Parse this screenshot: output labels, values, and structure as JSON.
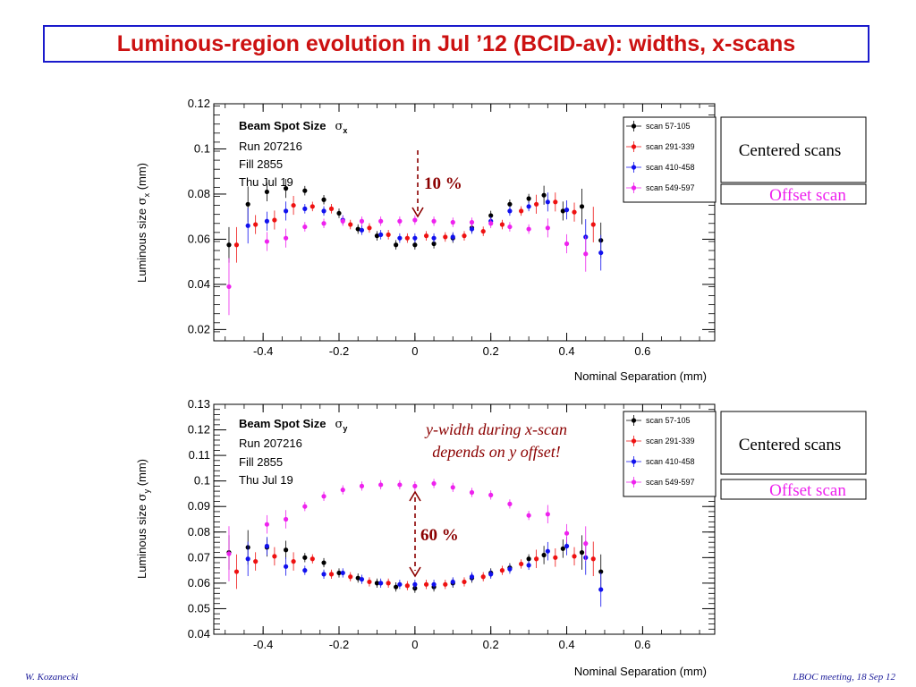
{
  "slide_title": "Luminous-region evolution in Jul ’12 (BCID-av): widths, x-scans",
  "footer_left": "W. Kozanecki",
  "footer_right": "LBOC meeting, 18 Sep 12",
  "colors": {
    "title": "#cc1111",
    "border": "#1a1acc",
    "scan_57_105": "#000000",
    "scan_291_339": "#ee1111",
    "scan_410_458": "#1111ee",
    "scan_549_597": "#ee22ee",
    "annotation": "#8b0000"
  },
  "chart_data": [
    {
      "type": "scatter",
      "info_title": "Beam Spot Size",
      "info_symbol": "σ",
      "info_subscript": "x",
      "info_lines": [
        "Run 207216",
        "Fill 2855",
        "Thu Jul 19"
      ],
      "xlabel": "Nominal Separation (mm)",
      "ylabel_pre": "Luminous size  ",
      "ylabel_symbol": "σ",
      "ylabel_subscript": "x",
      "ylabel_post": " (mm)",
      "xlim": [
        -0.53,
        0.79
      ],
      "ylim": [
        0.015,
        0.12
      ],
      "xticks": [
        "-0.4",
        "-0.2",
        "0",
        "0.2",
        "0.4",
        "0.6"
      ],
      "yticks": [
        "0.02",
        "0.04",
        "0.06",
        "0.08",
        "0.1",
        "0.12"
      ],
      "grid": false,
      "legend_position": "right",
      "side_labels": {
        "centered": "Centered scans",
        "offset": "Offset scan"
      },
      "annotation": "10 %",
      "series": [
        {
          "name": "scan 57-105",
          "x": [
            -0.49,
            -0.44,
            -0.39,
            -0.34,
            -0.29,
            -0.24,
            -0.2,
            -0.15,
            -0.1,
            -0.05,
            0.0,
            0.05,
            0.1,
            0.15,
            0.2,
            0.25,
            0.3,
            0.34,
            0.39,
            0.44,
            0.49
          ],
          "y": [
            0.0575,
            0.0755,
            0.081,
            0.0825,
            0.0815,
            0.0775,
            0.0715,
            0.0645,
            0.0615,
            0.0575,
            0.0575,
            0.058,
            0.0605,
            0.065,
            0.0705,
            0.0755,
            0.078,
            0.0795,
            0.0725,
            0.0745,
            0.0595
          ]
        },
        {
          "name": "scan 291-339",
          "x": [
            -0.47,
            -0.42,
            -0.37,
            -0.32,
            -0.27,
            -0.22,
            -0.17,
            -0.12,
            -0.07,
            -0.02,
            0.03,
            0.08,
            0.13,
            0.18,
            0.23,
            0.28,
            0.32,
            0.37,
            0.42,
            0.47
          ],
          "y": [
            0.0575,
            0.0665,
            0.0685,
            0.075,
            0.0745,
            0.0735,
            0.0665,
            0.065,
            0.062,
            0.0605,
            0.0615,
            0.061,
            0.0615,
            0.0635,
            0.0665,
            0.0725,
            0.0755,
            0.0765,
            0.072,
            0.0665
          ]
        },
        {
          "name": "scan 410-458",
          "x": [
            -0.44,
            -0.39,
            -0.34,
            -0.29,
            -0.24,
            -0.19,
            -0.14,
            -0.09,
            -0.04,
            0.0,
            0.05,
            0.1,
            0.15,
            0.2,
            0.25,
            0.3,
            0.35,
            0.4,
            0.45,
            0.49
          ],
          "y": [
            0.066,
            0.068,
            0.0725,
            0.0735,
            0.0725,
            0.0685,
            0.064,
            0.062,
            0.0605,
            0.0605,
            0.0605,
            0.061,
            0.0645,
            0.068,
            0.0725,
            0.0745,
            0.0765,
            0.073,
            0.061,
            0.054
          ]
        },
        {
          "name": "scan 549-597",
          "x": [
            -0.49,
            -0.39,
            -0.34,
            -0.29,
            -0.24,
            -0.19,
            -0.14,
            -0.09,
            -0.04,
            0.0,
            0.05,
            0.1,
            0.15,
            0.2,
            0.25,
            0.3,
            0.35,
            0.4,
            0.45
          ],
          "y": [
            0.039,
            0.059,
            0.0605,
            0.0655,
            0.067,
            0.068,
            0.068,
            0.068,
            0.068,
            0.0685,
            0.068,
            0.0675,
            0.0675,
            0.067,
            0.0655,
            0.0645,
            0.065,
            0.058,
            0.0535
          ]
        }
      ]
    },
    {
      "type": "scatter",
      "info_title": "Beam Spot Size",
      "info_symbol": "σ",
      "info_subscript": "y",
      "info_lines": [
        "Run 207216",
        "Fill 2855",
        "Thu Jul 19"
      ],
      "xlabel": "Nominal Separation (mm)",
      "ylabel_pre": "Luminous size  ",
      "ylabel_symbol": "σ",
      "ylabel_subscript": "y",
      "ylabel_post": " (mm)",
      "xlim": [
        -0.53,
        0.79
      ],
      "ylim": [
        0.04,
        0.13
      ],
      "xticks": [
        "-0.4",
        "-0.2",
        "0",
        "0.2",
        "0.4",
        "0.6"
      ],
      "yticks": [
        "0.04",
        "0.05",
        "0.06",
        "0.07",
        "0.08",
        "0.09",
        "0.1",
        "0.11",
        "0.12",
        "0.13"
      ],
      "grid": false,
      "legend_position": "right",
      "side_labels": {
        "centered": "Centered scans",
        "offset": "Offset scan"
      },
      "annotation": "60 %",
      "note_line1": "y-width during x-scan",
      "note_line2": "depends on y offset!",
      "series": [
        {
          "name": "scan 57-105",
          "x": [
            -0.49,
            -0.44,
            -0.39,
            -0.34,
            -0.29,
            -0.24,
            -0.2,
            -0.15,
            -0.1,
            -0.05,
            0.0,
            0.05,
            0.1,
            0.15,
            0.2,
            0.25,
            0.3,
            0.34,
            0.39,
            0.44,
            0.49
          ],
          "y": [
            0.072,
            0.074,
            0.074,
            0.073,
            0.07,
            0.068,
            0.064,
            0.062,
            0.06,
            0.0585,
            0.058,
            0.0585,
            0.06,
            0.062,
            0.064,
            0.066,
            0.0695,
            0.071,
            0.0735,
            0.072,
            0.0645
          ]
        },
        {
          "name": "scan 291-339",
          "x": [
            -0.47,
            -0.42,
            -0.37,
            -0.32,
            -0.27,
            -0.22,
            -0.17,
            -0.12,
            -0.07,
            -0.02,
            0.03,
            0.08,
            0.13,
            0.18,
            0.23,
            0.28,
            0.32,
            0.37,
            0.42,
            0.47
          ],
          "y": [
            0.0645,
            0.0685,
            0.0705,
            0.0685,
            0.0695,
            0.0635,
            0.0625,
            0.0605,
            0.06,
            0.059,
            0.0595,
            0.0595,
            0.0605,
            0.0625,
            0.065,
            0.0675,
            0.0695,
            0.07,
            0.0705,
            0.0695
          ]
        },
        {
          "name": "scan 410-458",
          "x": [
            -0.44,
            -0.39,
            -0.34,
            -0.29,
            -0.24,
            -0.19,
            -0.14,
            -0.09,
            -0.04,
            0.0,
            0.05,
            0.1,
            0.15,
            0.2,
            0.25,
            0.3,
            0.35,
            0.4,
            0.45,
            0.49
          ],
          "y": [
            0.0695,
            0.0745,
            0.0665,
            0.065,
            0.0635,
            0.064,
            0.0615,
            0.06,
            0.0595,
            0.0595,
            0.0595,
            0.0605,
            0.0625,
            0.0635,
            0.0655,
            0.067,
            0.0725,
            0.0745,
            0.07,
            0.0575
          ]
        },
        {
          "name": "scan 549-597",
          "x": [
            -0.49,
            -0.39,
            -0.34,
            -0.29,
            -0.24,
            -0.19,
            -0.14,
            -0.09,
            -0.04,
            0.0,
            0.05,
            0.1,
            0.15,
            0.2,
            0.25,
            0.3,
            0.35,
            0.4,
            0.45
          ],
          "y": [
            0.0715,
            0.083,
            0.085,
            0.09,
            0.094,
            0.0965,
            0.098,
            0.0985,
            0.0985,
            0.098,
            0.099,
            0.0975,
            0.0955,
            0.0945,
            0.091,
            0.0865,
            0.087,
            0.0795,
            0.0755
          ]
        }
      ]
    }
  ]
}
